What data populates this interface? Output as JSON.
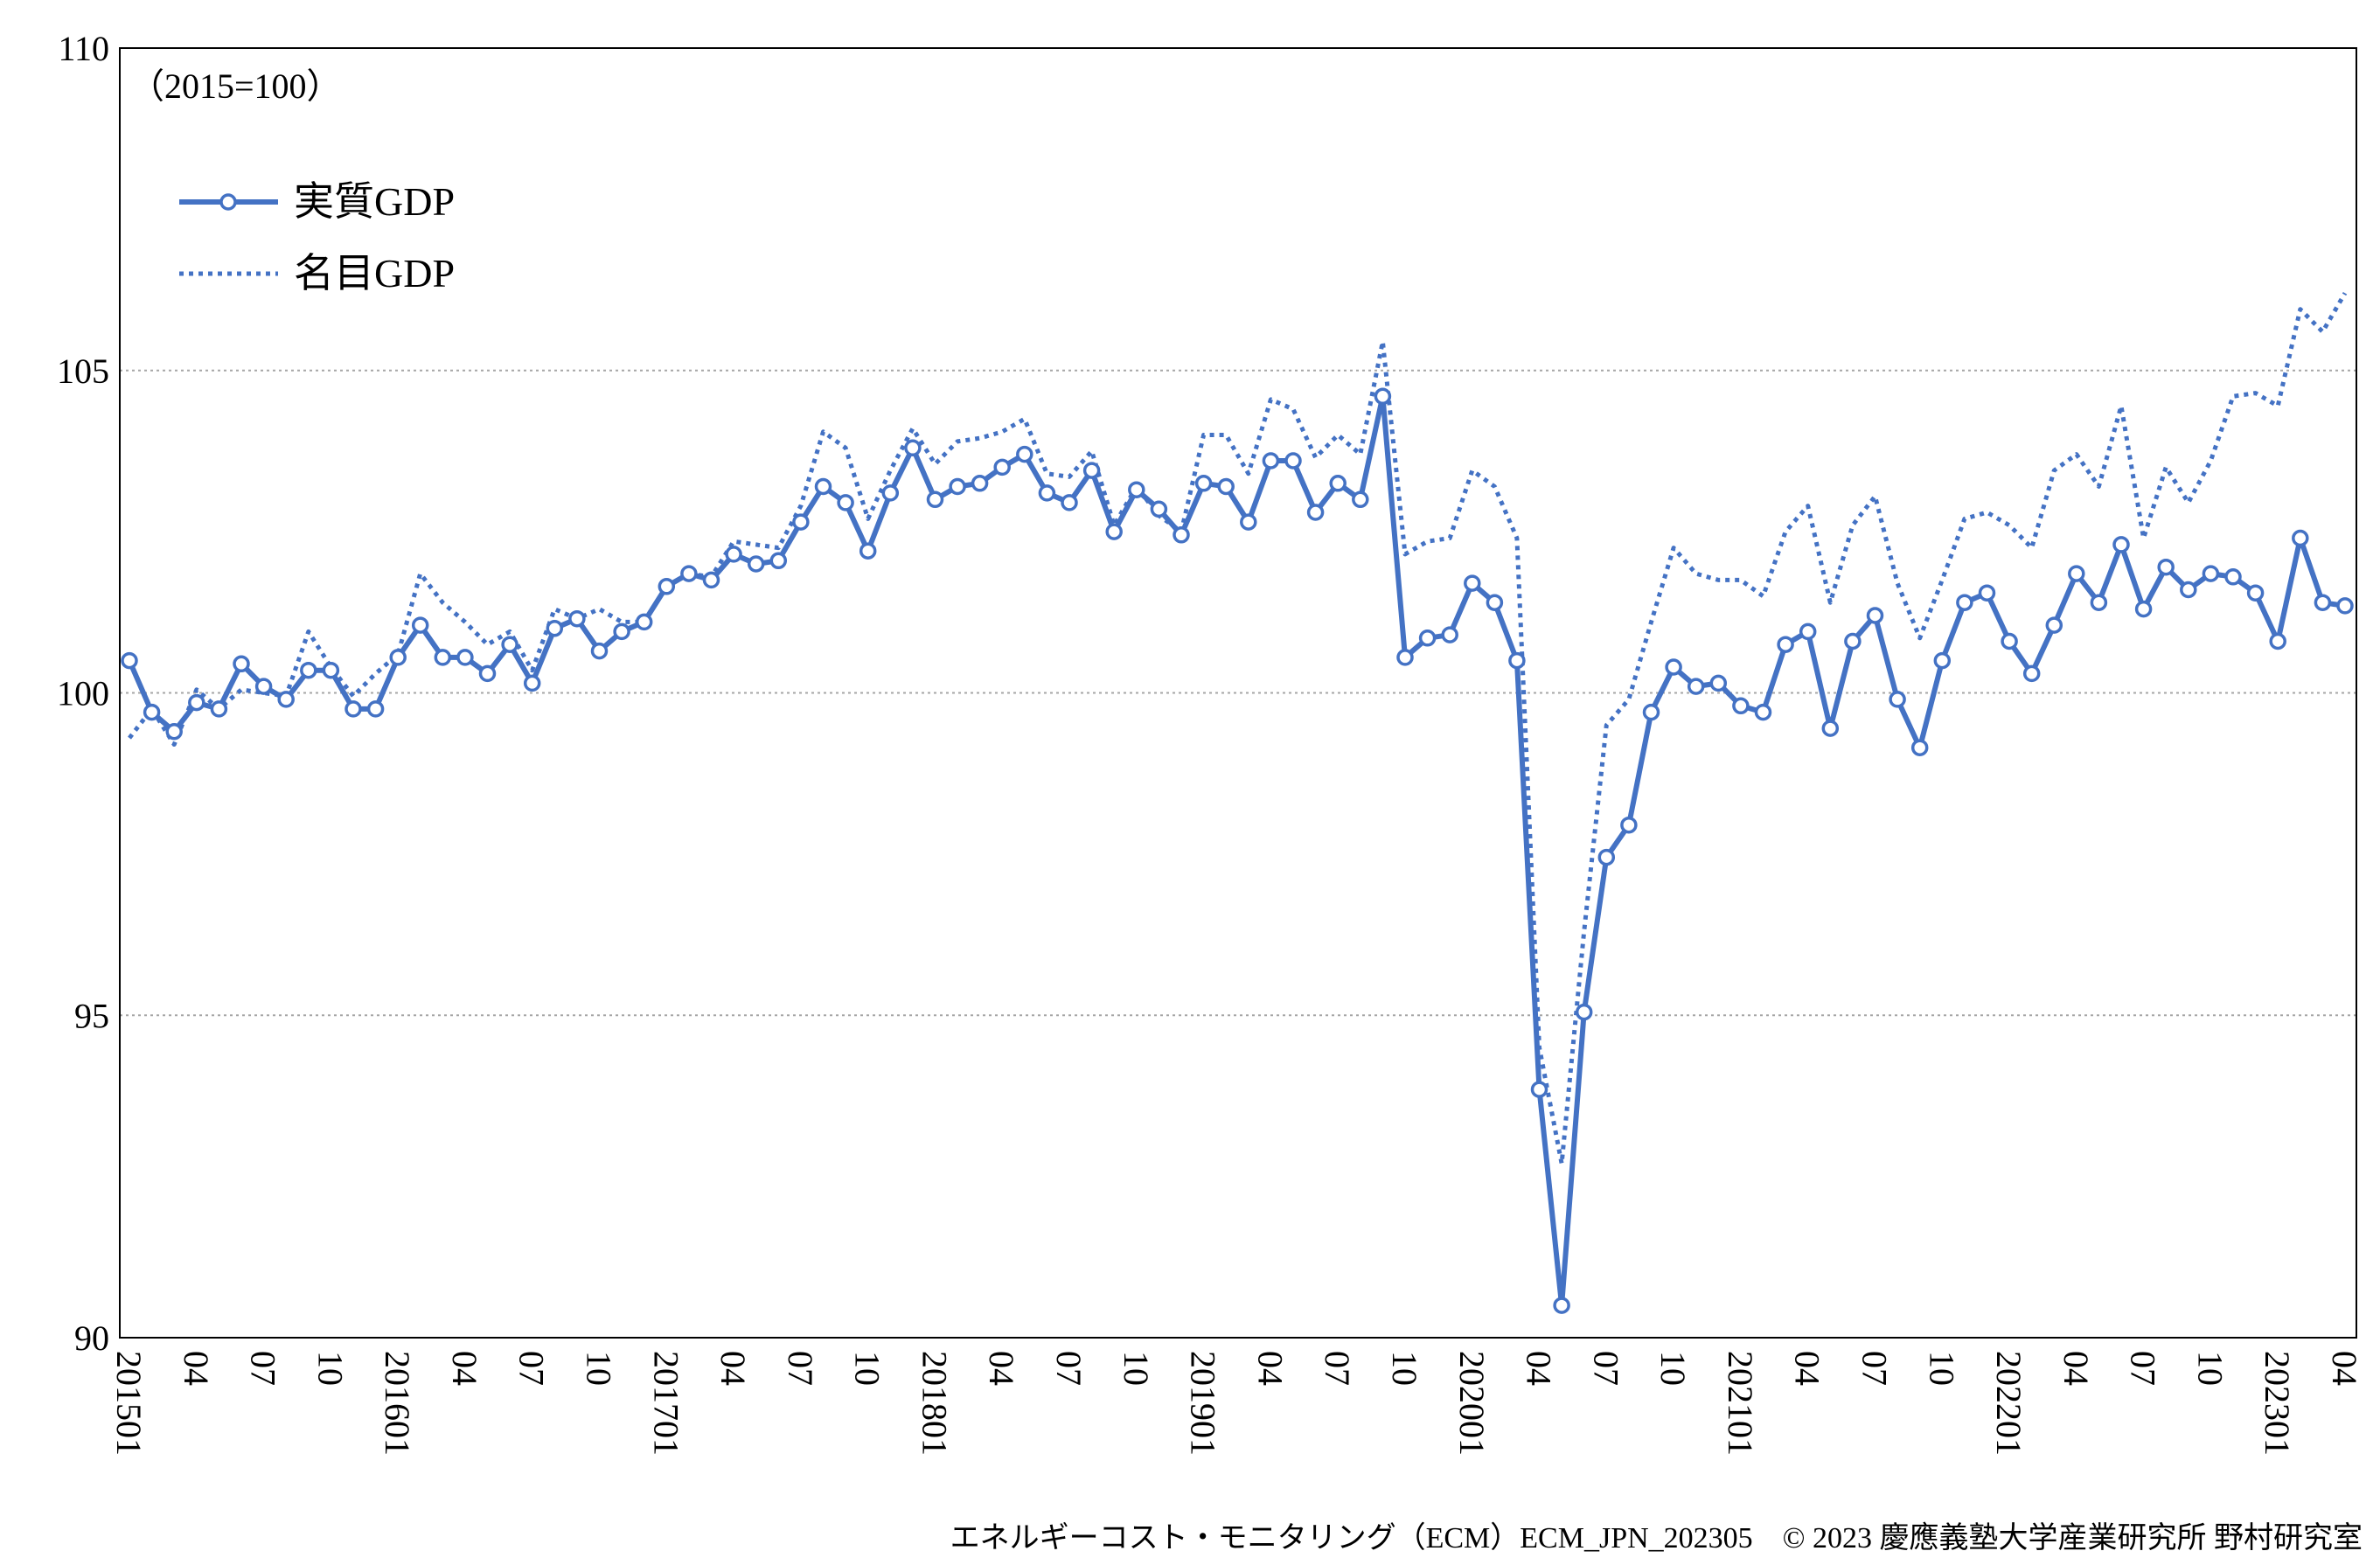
{
  "chart_data": {
    "type": "line",
    "unit_note": "（2015=100）",
    "ylim": [
      90,
      110
    ],
    "y_ticks": [
      90,
      95,
      100,
      105,
      110
    ],
    "grid": "horizontal dotted",
    "legend_position": "top-left",
    "x_labels": [
      "201501",
      "04",
      "07",
      "10",
      "201601",
      "04",
      "07",
      "10",
      "201701",
      "04",
      "07",
      "10",
      "201801",
      "04",
      "07",
      "10",
      "201901",
      "04",
      "07",
      "10",
      "202001",
      "04",
      "07",
      "10",
      "202101",
      "04",
      "07",
      "10",
      "202201",
      "04",
      "07",
      "10",
      "202301",
      "04"
    ],
    "series": [
      {
        "name": "実質GDP",
        "style": "solid-marker",
        "color": "#4472C4",
        "values": [
          100.5,
          99.7,
          99.4,
          99.85,
          99.75,
          100.45,
          100.1,
          99.9,
          100.35,
          100.35,
          99.75,
          99.75,
          100.55,
          101.05,
          100.55,
          100.55,
          100.3,
          100.75,
          100.15,
          101.0,
          101.15,
          100.65,
          100.95,
          101.1,
          101.65,
          101.85,
          101.75,
          102.15,
          102.0,
          102.05,
          102.65,
          103.2,
          102.95,
          102.2,
          103.1,
          103.8,
          103.0,
          103.2,
          103.25,
          103.5,
          103.7,
          103.1,
          102.95,
          103.45,
          102.5,
          103.15,
          102.85,
          102.45,
          103.25,
          103.2,
          102.65,
          103.6,
          103.6,
          102.8,
          103.25,
          103.0,
          104.6,
          100.55,
          100.85,
          100.9,
          101.7,
          101.4,
          100.5,
          93.85,
          90.5,
          95.05,
          97.45,
          97.95,
          99.7,
          100.4,
          100.1,
          100.15,
          99.8,
          99.7,
          100.75,
          100.95,
          99.45,
          100.8,
          101.2,
          99.9,
          99.15,
          100.5,
          101.4,
          101.55,
          100.8,
          100.3,
          101.05,
          101.85,
          101.4,
          102.3,
          101.3,
          101.95,
          101.6,
          101.85,
          101.8,
          101.55,
          100.8,
          102.4,
          101.4,
          101.35
        ]
      },
      {
        "name": "名目GDP",
        "style": "dotted",
        "color": "#4472C4",
        "values": [
          99.3,
          99.75,
          99.2,
          100.05,
          99.75,
          100.05,
          100.0,
          99.95,
          100.95,
          100.4,
          99.95,
          100.3,
          100.6,
          101.85,
          101.4,
          101.1,
          100.75,
          100.95,
          100.35,
          101.3,
          101.15,
          101.3,
          101.1,
          101.1,
          101.65,
          101.85,
          101.8,
          102.35,
          102.3,
          102.25,
          102.9,
          104.05,
          103.8,
          102.7,
          103.45,
          104.1,
          103.55,
          103.9,
          103.95,
          104.05,
          104.25,
          103.4,
          103.35,
          103.75,
          102.6,
          103.2,
          102.75,
          102.5,
          104.0,
          104.0,
          103.4,
          104.55,
          104.4,
          103.65,
          104.0,
          103.7,
          105.45,
          102.15,
          102.35,
          102.4,
          103.45,
          103.2,
          102.4,
          94.5,
          92.7,
          96.3,
          99.5,
          99.9,
          101.1,
          102.25,
          101.85,
          101.75,
          101.75,
          101.5,
          102.5,
          102.9,
          101.4,
          102.6,
          103.05,
          101.7,
          100.85,
          101.75,
          102.7,
          102.8,
          102.6,
          102.25,
          103.45,
          103.7,
          103.2,
          104.45,
          102.4,
          103.5,
          102.95,
          103.6,
          104.6,
          104.65,
          104.45,
          105.95,
          105.6,
          106.2
        ]
      }
    ]
  },
  "footer": {
    "credit": "エネルギーコスト・モニタリング（ECM）ECM_JPN_202305　© 2023 慶應義塾大学産業研究所  野村研究室"
  }
}
